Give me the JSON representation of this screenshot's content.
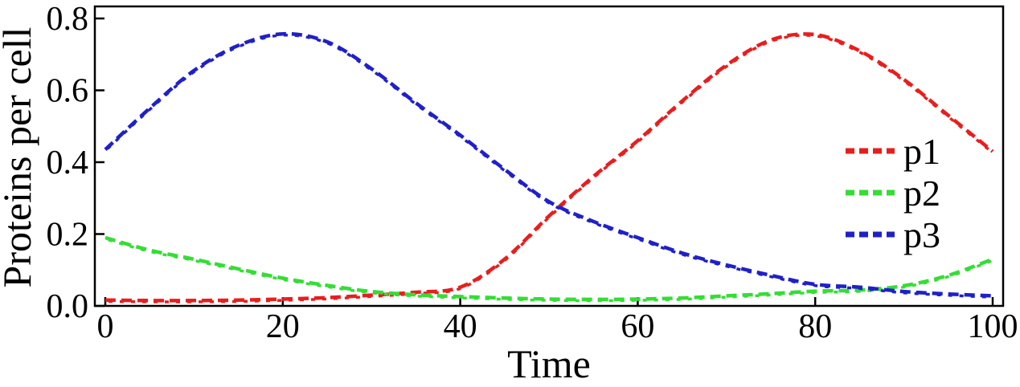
{
  "chart_data": {
    "type": "line",
    "title": "",
    "xlabel": "Time",
    "ylabel": "Proteins per cell",
    "xlim": [
      0,
      100
    ],
    "ylim": [
      0,
      0.8
    ],
    "grid": false,
    "frame": true,
    "legend_position": "inside-right",
    "x_ticks": [
      0,
      20,
      40,
      60,
      80,
      100
    ],
    "x_tick_labels": [
      "0",
      "20",
      "40",
      "60",
      "80",
      "100"
    ],
    "y_ticks": [
      0,
      0.2,
      0.4,
      0.6,
      0.8
    ],
    "y_tick_labels": [
      "0.0",
      "0.2",
      "0.4",
      "0.6",
      "0.8"
    ],
    "x": [
      0,
      5,
      10,
      15,
      20,
      25,
      30,
      35,
      40,
      45,
      50,
      55,
      60,
      65,
      70,
      75,
      80,
      85,
      90,
      95,
      100
    ],
    "series": [
      {
        "name": "p1",
        "color": "#e81e1e",
        "line_style": "dashed",
        "values": [
          0.016,
          0.015,
          0.015,
          0.016,
          0.019,
          0.023,
          0.03,
          0.038,
          0.052,
          0.13,
          0.25,
          0.36,
          0.46,
          0.57,
          0.67,
          0.74,
          0.755,
          0.71,
          0.63,
          0.53,
          0.43
        ]
      },
      {
        "name": "p2",
        "color": "#35dd35",
        "line_style": "dashed",
        "values": [
          0.19,
          0.155,
          0.13,
          0.103,
          0.077,
          0.057,
          0.04,
          0.031,
          0.026,
          0.022,
          0.019,
          0.018,
          0.019,
          0.022,
          0.028,
          0.034,
          0.041,
          0.044,
          0.056,
          0.085,
          0.13
        ]
      },
      {
        "name": "p3",
        "color": "#2020c8",
        "line_style": "dashed",
        "values": [
          0.435,
          0.55,
          0.655,
          0.725,
          0.757,
          0.735,
          0.66,
          0.565,
          0.475,
          0.38,
          0.29,
          0.235,
          0.19,
          0.147,
          0.114,
          0.085,
          0.06,
          0.052,
          0.04,
          0.033,
          0.028
        ]
      }
    ],
    "annotations": {
      "peak_p3": {
        "t": 20,
        "value": 0.755
      },
      "peak_p1": {
        "t": 78,
        "value": 0.755
      }
    }
  }
}
